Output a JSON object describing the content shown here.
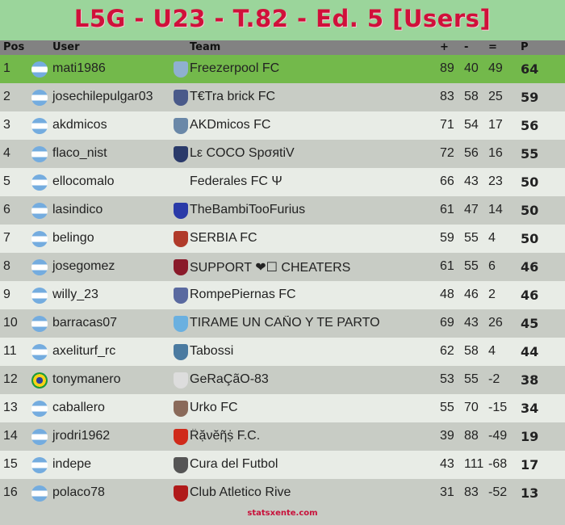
{
  "title": "L5G - U23 - T.82 - Ed. 5 [Users]",
  "columns": {
    "pos": "Pos",
    "user": "User",
    "team": "Team",
    "plus": "+",
    "minus": "-",
    "eq": "=",
    "p": "P"
  },
  "colors": {
    "title": "#d0103a",
    "leader_row": "#73b94b",
    "header": "#828282"
  },
  "rows": [
    {
      "pos": "1",
      "flag": "argentina",
      "user": "mati1986",
      "team": "Freezerpool FC",
      "crest": "#8fb0d0",
      "plus": "89",
      "minus": "40",
      "eq": "49",
      "p": "64"
    },
    {
      "pos": "2",
      "flag": "argentina",
      "user": "josechilepulgar03",
      "team": "T€Tra brick FC",
      "crest": "#4a5a8a",
      "plus": "83",
      "minus": "58",
      "eq": "25",
      "p": "59"
    },
    {
      "pos": "3",
      "flag": "argentina",
      "user": "akdmicos",
      "team": "AKDmicos FC",
      "crest": "#6a88a8",
      "plus": "71",
      "minus": "54",
      "eq": "17",
      "p": "56"
    },
    {
      "pos": "4",
      "flag": "argentina",
      "user": "flaco_nist",
      "team": "Lε COCO SpσяtiV",
      "crest": "#2a3a6a",
      "plus": "72",
      "minus": "56",
      "eq": "16",
      "p": "55"
    },
    {
      "pos": "5",
      "flag": "argentina",
      "user": "ellocomalo",
      "team": "Federales FC Ψ",
      "crest": "",
      "plus": "66",
      "minus": "43",
      "eq": "23",
      "p": "50"
    },
    {
      "pos": "6",
      "flag": "argentina",
      "user": "lasindico",
      "team": "TheBambiTooFurius",
      "crest": "#2a3aa8",
      "plus": "61",
      "minus": "47",
      "eq": "14",
      "p": "50"
    },
    {
      "pos": "7",
      "flag": "argentina",
      "user": "belingo",
      "team": "SERBIA FC",
      "crest": "#b03a2a",
      "plus": "59",
      "minus": "55",
      "eq": "4",
      "p": "50"
    },
    {
      "pos": "8",
      "flag": "argentina",
      "user": "josegomez",
      "team": "SUPPORT ❤☐ CHEATERS",
      "crest": "#8a1a2a",
      "plus": "61",
      "minus": "55",
      "eq": "6",
      "p": "46"
    },
    {
      "pos": "9",
      "flag": "argentina",
      "user": "willy_23",
      "team": "RompePiernas FC",
      "crest": "#5a6aa0",
      "plus": "48",
      "minus": "46",
      "eq": "2",
      "p": "46"
    },
    {
      "pos": "10",
      "flag": "argentina",
      "user": "barracas07",
      "team": "TIRAME UN CAÑO Y TE PARTO",
      "crest": "#6ab0e0",
      "plus": "69",
      "minus": "43",
      "eq": "26",
      "p": "45"
    },
    {
      "pos": "11",
      "flag": "argentina",
      "user": "axeliturf_rc",
      "team": "Tabossi",
      "crest": "#4a7aa0",
      "plus": "62",
      "minus": "58",
      "eq": "4",
      "p": "44"
    },
    {
      "pos": "12",
      "flag": "brazil",
      "user": "tonymanero",
      "team": "GeRaÇãO-83",
      "crest": "#dddddd",
      "plus": "53",
      "minus": "55",
      "eq": "-2",
      "p": "38"
    },
    {
      "pos": "13",
      "flag": "argentina",
      "user": "caballero",
      "team": "Urko FC",
      "crest": "#8a6a5a",
      "plus": "55",
      "minus": "70",
      "eq": "-15",
      "p": "34"
    },
    {
      "pos": "14",
      "flag": "argentina",
      "user": "jrodri1962",
      "team": "Ȓặνĕῆṩ F.C.",
      "crest": "#d02a1a",
      "plus": "39",
      "minus": "88",
      "eq": "-49",
      "p": "19"
    },
    {
      "pos": "15",
      "flag": "argentina",
      "user": "indepe",
      "team": "Cura del Futbol",
      "crest": "#555555",
      "plus": "43",
      "minus": "111",
      "eq": "-68",
      "p": "17"
    },
    {
      "pos": "16",
      "flag": "argentina",
      "user": "polaco78",
      "team": "Club Atletico Rive",
      "crest": "#b01a1a",
      "plus": "31",
      "minus": "83",
      "eq": "-52",
      "p": "13"
    }
  ],
  "footer": "statsxente.com"
}
